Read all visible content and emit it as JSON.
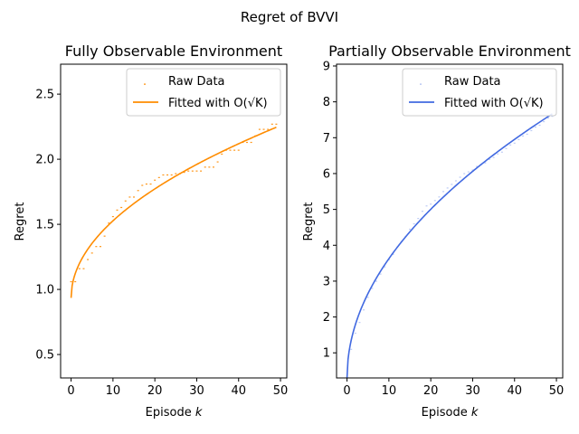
{
  "suptitle": "Regret of BVVI",
  "chart_data": [
    {
      "type": "line",
      "title": "Fully Observable Environment",
      "xlabel": "Episode k",
      "ylabel": "Regret",
      "xlim": [
        -2.5,
        51.5
      ],
      "ylim": [
        0.32,
        2.73
      ],
      "xticks": [
        0,
        10,
        20,
        30,
        40,
        50
      ],
      "yticks": [
        0.5,
        1.0,
        1.5,
        2.0,
        2.5
      ],
      "ytick_labels": [
        "0.5",
        "1.0",
        "1.5",
        "2.0",
        "2.5"
      ],
      "grid": false,
      "legend": "upper right",
      "color": "#ff8c00",
      "series": [
        {
          "name": "Raw Data",
          "style": "points",
          "x": [
            0,
            1,
            2,
            3,
            4,
            5,
            6,
            7,
            8,
            9,
            10,
            11,
            12,
            13,
            14,
            15,
            16,
            17,
            18,
            19,
            20,
            21,
            22,
            23,
            24,
            25,
            26,
            27,
            28,
            29,
            30,
            31,
            32,
            33,
            34,
            35,
            36,
            37,
            38,
            39,
            40,
            41,
            42,
            43,
            44,
            45,
            46,
            47,
            48,
            49
          ],
          "y": [
            1.06,
            1.06,
            1.16,
            1.16,
            1.23,
            1.28,
            1.33,
            1.33,
            1.41,
            1.51,
            1.56,
            1.61,
            1.63,
            1.68,
            1.71,
            1.71,
            1.76,
            1.8,
            1.81,
            1.81,
            1.84,
            1.86,
            1.88,
            1.88,
            1.88,
            1.89,
            1.89,
            1.9,
            1.91,
            1.91,
            1.91,
            1.91,
            1.94,
            1.94,
            1.94,
            1.98,
            2.04,
            2.07,
            2.07,
            2.07,
            2.07,
            2.13,
            2.13,
            2.13,
            2.18,
            2.23,
            2.23,
            2.23,
            2.27,
            2.27
          ]
        },
        {
          "name": "Fitted with O(√K)",
          "style": "line",
          "fit": {
            "intercept": 0.935,
            "coef": 0.1872,
            "x_max": 49
          }
        }
      ]
    },
    {
      "type": "line",
      "title": "Partially Observable Environment",
      "xlabel": "Episode k",
      "ylabel": "Regret",
      "xlim": [
        -2.5,
        51.5
      ],
      "ylim": [
        0.3,
        9.05
      ],
      "xticks": [
        0,
        10,
        20,
        30,
        40,
        50
      ],
      "yticks": [
        1,
        2,
        3,
        4,
        5,
        6,
        7,
        8,
        9
      ],
      "ytick_labels": [
        "1",
        "2",
        "3",
        "4",
        "5",
        "6",
        "7",
        "8",
        "9"
      ],
      "grid": false,
      "legend": "upper right",
      "color": "#4169e1",
      "series": [
        {
          "name": "Raw Data",
          "style": "points",
          "x": [
            0,
            1,
            2,
            3,
            4,
            5,
            6,
            7,
            8,
            9,
            10,
            11,
            12,
            13,
            14,
            15,
            16,
            17,
            18,
            19,
            20,
            21,
            22,
            23,
            24,
            25,
            26,
            27,
            28,
            29,
            30,
            31,
            32,
            33,
            34,
            35,
            36,
            37,
            38,
            39,
            40,
            41,
            42,
            43,
            44,
            45,
            46,
            47,
            48,
            49
          ],
          "y": [
            0.3,
            1.1,
            1.55,
            1.85,
            2.2,
            2.55,
            2.8,
            3.0,
            3.2,
            3.4,
            3.6,
            3.75,
            3.95,
            4.1,
            4.25,
            4.45,
            4.6,
            4.75,
            4.95,
            5.1,
            5.15,
            5.25,
            5.35,
            5.5,
            5.6,
            5.7,
            5.8,
            5.9,
            6.0,
            6.05,
            6.1,
            6.2,
            6.25,
            6.3,
            6.4,
            6.45,
            6.55,
            6.6,
            6.7,
            6.8,
            6.85,
            6.95,
            7.05,
            7.1,
            7.2,
            7.3,
            7.35,
            7.45,
            7.55,
            7.6
          ]
        },
        {
          "name": "Fitted with O(√K)",
          "style": "line",
          "fit": {
            "intercept": 0.3,
            "coef": 1.052,
            "x_max": 49
          }
        }
      ]
    }
  ]
}
